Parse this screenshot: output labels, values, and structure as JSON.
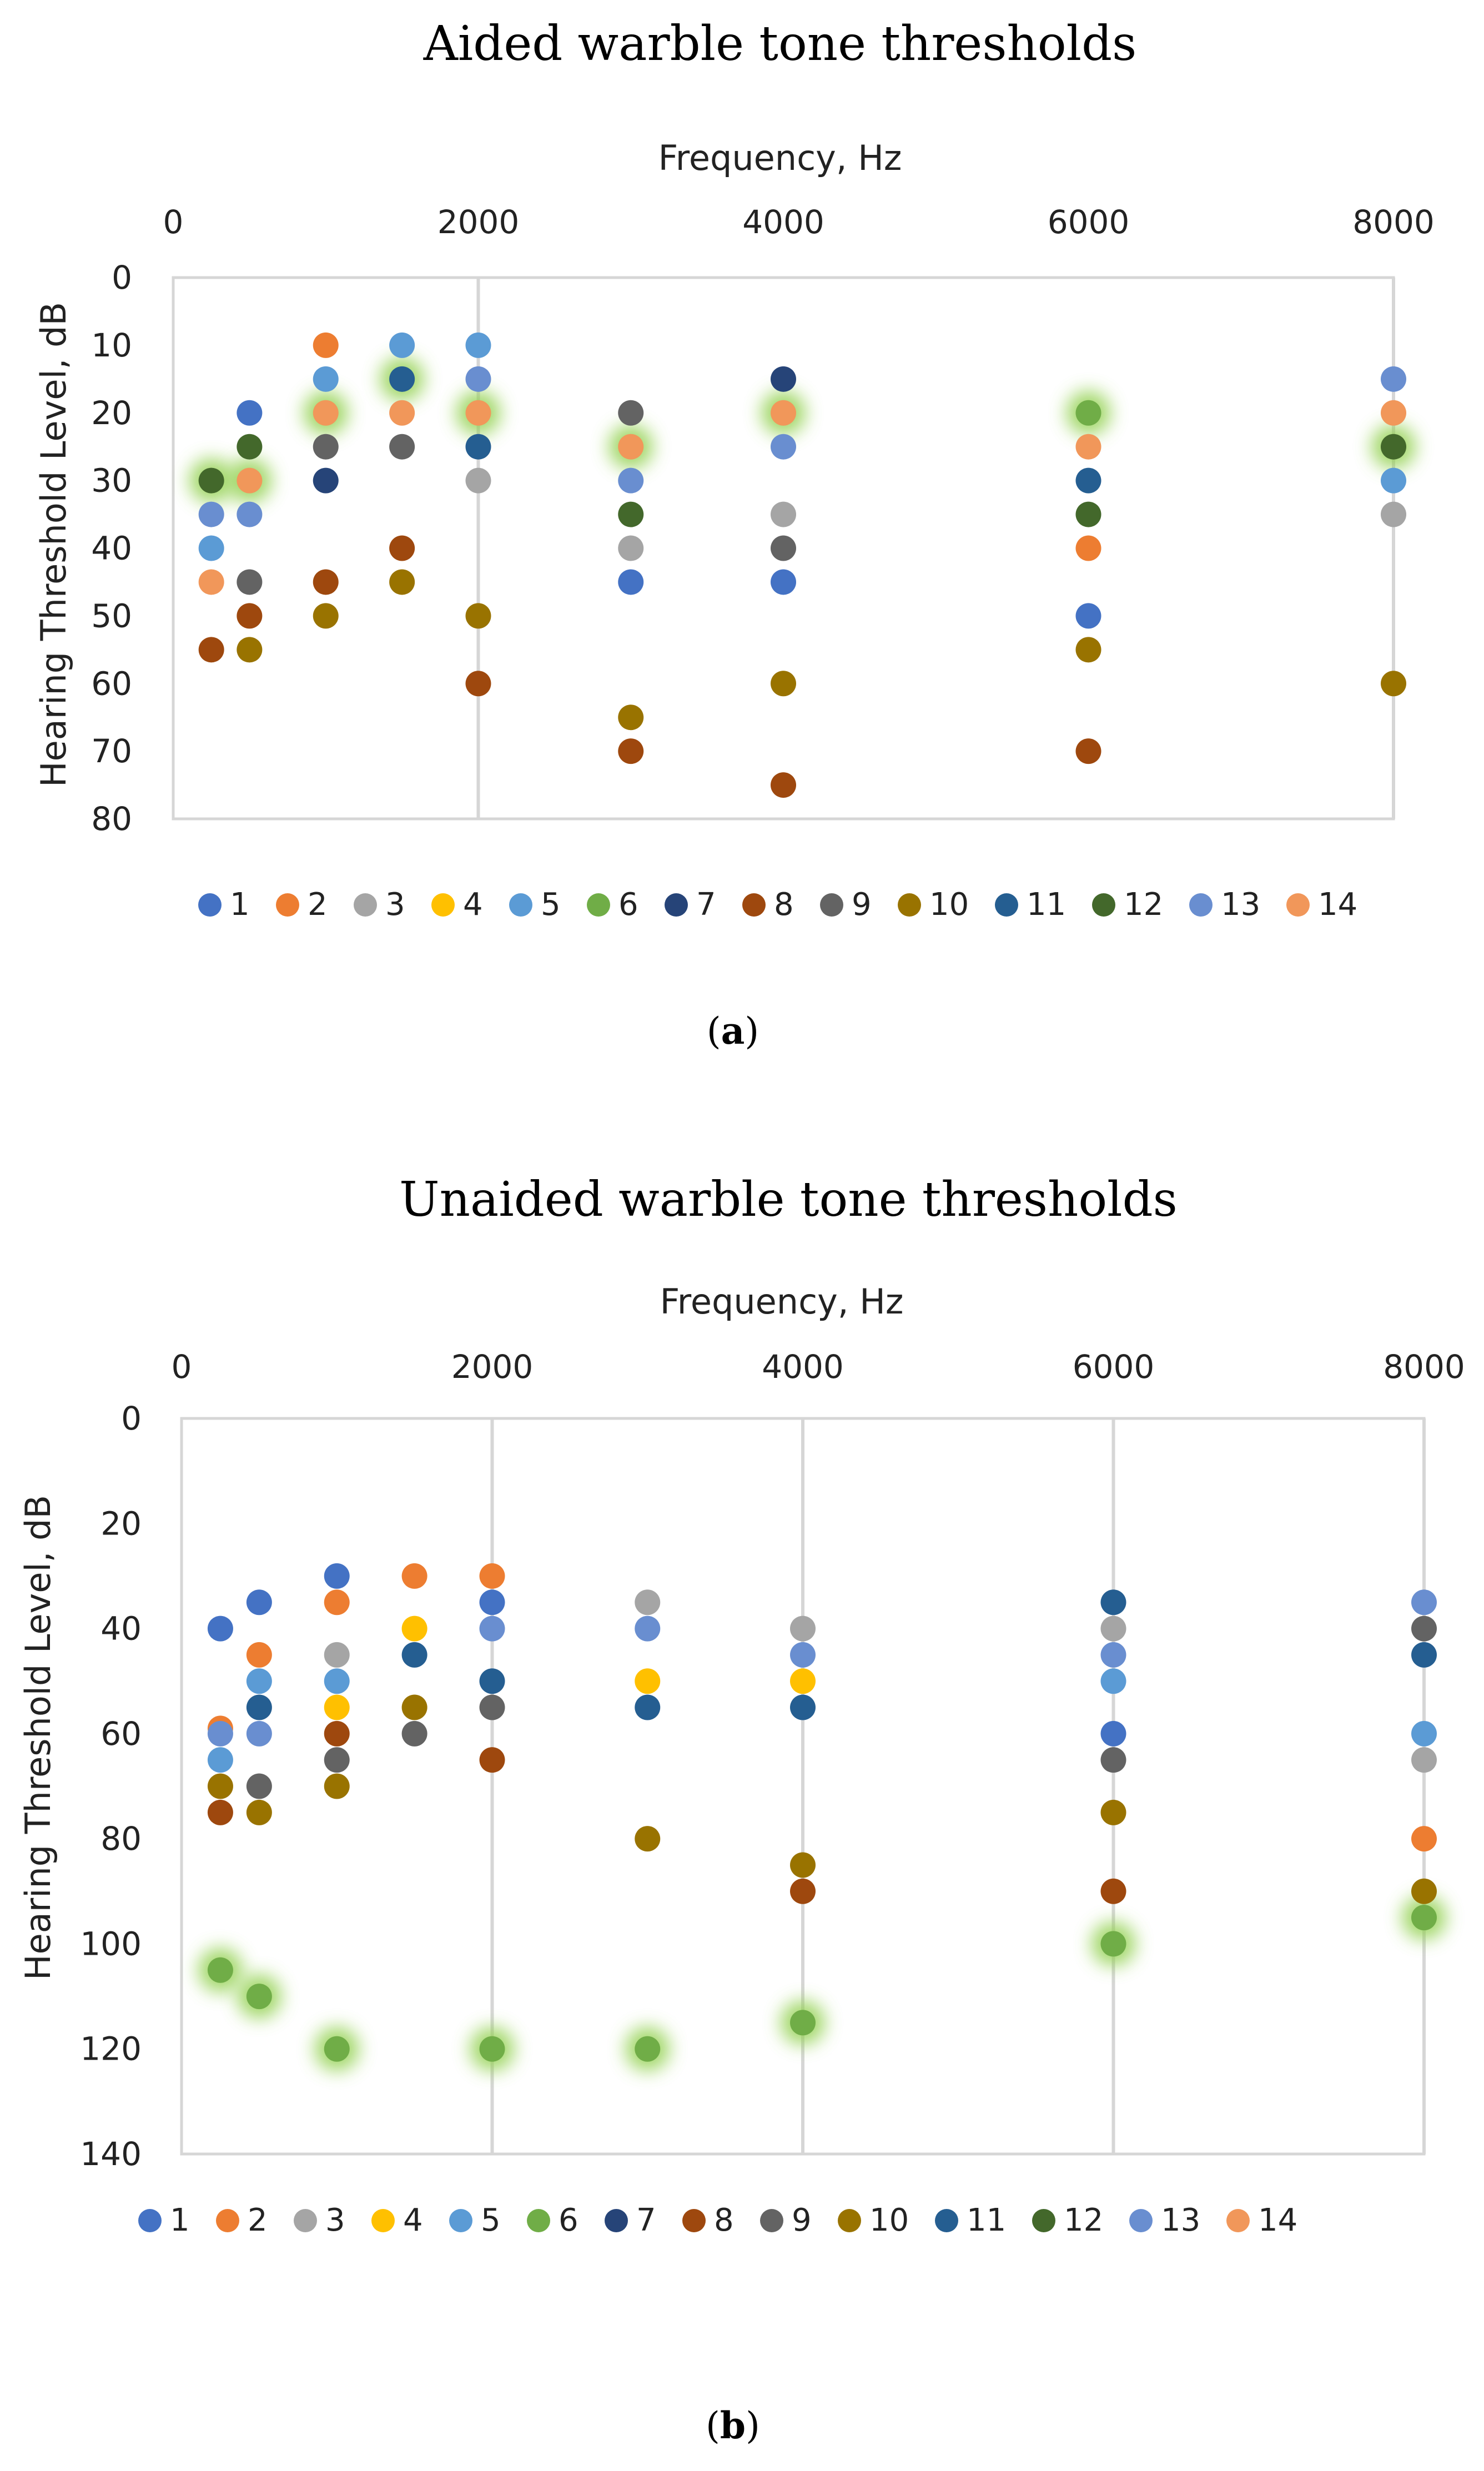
{
  "series_colors": {
    "1": "#4472C4",
    "2": "#ED7D31",
    "3": "#A5A5A5",
    "4": "#FFC000",
    "5": "#5B9BD5",
    "6": "#70AD47",
    "7": "#264478",
    "8": "#9E480E",
    "9": "#636363",
    "10": "#997300",
    "11": "#255E91",
    "12": "#43682B",
    "13": "#698ED0",
    "14": "#F1975A"
  },
  "glow_color": "#92D050",
  "legend": [
    "1",
    "2",
    "3",
    "4",
    "5",
    "6",
    "7",
    "8",
    "9",
    "10",
    "11",
    "12",
    "13",
    "14"
  ],
  "chart_data": [
    {
      "type": "scatter",
      "title": "Aided warble tone thresholds",
      "caption": "a",
      "xlabel": "Frequency, Hz",
      "ylabel": "Hearing Threshold Level, dB",
      "xlim": [
        0,
        8000
      ],
      "ylim": [
        0,
        80
      ],
      "y_reversed": true,
      "x_axis_position": "top",
      "xticks": [
        0,
        2000,
        4000,
        6000,
        8000
      ],
      "yticks": [
        0,
        10,
        20,
        30,
        40,
        50,
        60,
        70,
        80
      ],
      "xtick_labels": [
        "0",
        "2000",
        "4000",
        "6000",
        "8000"
      ],
      "ytick_labels": [
        "0",
        "10",
        "20",
        "30",
        "40",
        "50",
        "60",
        "70",
        "80"
      ],
      "x_gridlines": [
        2000,
        8000
      ],
      "points": [
        {
          "s": "12",
          "x": 250,
          "y": 30,
          "hl": true
        },
        {
          "s": "13",
          "x": 250,
          "y": 35
        },
        {
          "s": "5",
          "x": 250,
          "y": 40
        },
        {
          "s": "14",
          "x": 250,
          "y": 45
        },
        {
          "s": "8",
          "x": 250,
          "y": 55
        },
        {
          "s": "1",
          "x": 500,
          "y": 20
        },
        {
          "s": "12",
          "x": 500,
          "y": 25
        },
        {
          "s": "14",
          "x": 500,
          "y": 30,
          "hl": true
        },
        {
          "s": "13",
          "x": 500,
          "y": 35
        },
        {
          "s": "9",
          "x": 500,
          "y": 45
        },
        {
          "s": "8",
          "x": 500,
          "y": 50
        },
        {
          "s": "10",
          "x": 500,
          "y": 55
        },
        {
          "s": "2",
          "x": 1000,
          "y": 10
        },
        {
          "s": "5",
          "x": 1000,
          "y": 15
        },
        {
          "s": "14",
          "x": 1000,
          "y": 20,
          "hl": true
        },
        {
          "s": "9",
          "x": 1000,
          "y": 25
        },
        {
          "s": "7",
          "x": 1000,
          "y": 30
        },
        {
          "s": "8",
          "x": 1000,
          "y": 45
        },
        {
          "s": "10",
          "x": 1000,
          "y": 50
        },
        {
          "s": "5",
          "x": 1500,
          "y": 10
        },
        {
          "s": "11",
          "x": 1500,
          "y": 15,
          "hl": true
        },
        {
          "s": "14",
          "x": 1500,
          "y": 20
        },
        {
          "s": "9",
          "x": 1500,
          "y": 25
        },
        {
          "s": "8",
          "x": 1500,
          "y": 40
        },
        {
          "s": "10",
          "x": 1500,
          "y": 45
        },
        {
          "s": "5",
          "x": 2000,
          "y": 10
        },
        {
          "s": "13",
          "x": 2000,
          "y": 15
        },
        {
          "s": "14",
          "x": 2000,
          "y": 20,
          "hl": true
        },
        {
          "s": "11",
          "x": 2000,
          "y": 25
        },
        {
          "s": "3",
          "x": 2000,
          "y": 30
        },
        {
          "s": "10",
          "x": 2000,
          "y": 50
        },
        {
          "s": "8",
          "x": 2000,
          "y": 60
        },
        {
          "s": "9",
          "x": 3000,
          "y": 20
        },
        {
          "s": "14",
          "x": 3000,
          "y": 25,
          "hl": true
        },
        {
          "s": "13",
          "x": 3000,
          "y": 30
        },
        {
          "s": "12",
          "x": 3000,
          "y": 35
        },
        {
          "s": "3",
          "x": 3000,
          "y": 40
        },
        {
          "s": "1",
          "x": 3000,
          "y": 45
        },
        {
          "s": "10",
          "x": 3000,
          "y": 65
        },
        {
          "s": "8",
          "x": 3000,
          "y": 70
        },
        {
          "s": "7",
          "x": 4000,
          "y": 15
        },
        {
          "s": "14",
          "x": 4000,
          "y": 20,
          "hl": true
        },
        {
          "s": "13",
          "x": 4000,
          "y": 25
        },
        {
          "s": "3",
          "x": 4000,
          "y": 35
        },
        {
          "s": "9",
          "x": 4000,
          "y": 40
        },
        {
          "s": "1",
          "x": 4000,
          "y": 45
        },
        {
          "s": "10",
          "x": 4000,
          "y": 60
        },
        {
          "s": "8",
          "x": 4000,
          "y": 75
        },
        {
          "s": "6",
          "x": 6000,
          "y": 20,
          "hl": true
        },
        {
          "s": "14",
          "x": 6000,
          "y": 25
        },
        {
          "s": "11",
          "x": 6000,
          "y": 30
        },
        {
          "s": "12",
          "x": 6000,
          "y": 35
        },
        {
          "s": "2",
          "x": 6000,
          "y": 40
        },
        {
          "s": "1",
          "x": 6000,
          "y": 50
        },
        {
          "s": "10",
          "x": 6000,
          "y": 55
        },
        {
          "s": "8",
          "x": 6000,
          "y": 70
        },
        {
          "s": "13",
          "x": 8000,
          "y": 15
        },
        {
          "s": "14",
          "x": 8000,
          "y": 20
        },
        {
          "s": "12",
          "x": 8000,
          "y": 25,
          "hl": true
        },
        {
          "s": "5",
          "x": 8000,
          "y": 30
        },
        {
          "s": "3",
          "x": 8000,
          "y": 35
        },
        {
          "s": "10",
          "x": 8000,
          "y": 60
        }
      ]
    },
    {
      "type": "scatter",
      "title": "Unaided warble tone thresholds",
      "caption": "b",
      "xlabel": "Frequency, Hz",
      "ylabel": "Hearing Threshold Level, dB",
      "xlim": [
        0,
        8000
      ],
      "ylim": [
        0,
        140
      ],
      "y_reversed": true,
      "x_axis_position": "top",
      "xticks": [
        0,
        2000,
        4000,
        6000,
        8000
      ],
      "yticks": [
        0,
        20,
        40,
        60,
        80,
        100,
        120,
        140
      ],
      "xtick_labels": [
        "0",
        "2000",
        "4000",
        "6000",
        "8000"
      ],
      "ytick_labels": [
        "0",
        "20",
        "40",
        "60",
        "80",
        "100",
        "120",
        "140"
      ],
      "x_gridlines": [
        2000,
        4000,
        6000,
        8000
      ],
      "points": [
        {
          "s": "1",
          "x": 250,
          "y": 40
        },
        {
          "s": "2",
          "x": 250,
          "y": 59
        },
        {
          "s": "13",
          "x": 250,
          "y": 60
        },
        {
          "s": "5",
          "x": 250,
          "y": 65
        },
        {
          "s": "10",
          "x": 250,
          "y": 70
        },
        {
          "s": "8",
          "x": 250,
          "y": 75
        },
        {
          "s": "6",
          "x": 250,
          "y": 105,
          "hl": true
        },
        {
          "s": "1",
          "x": 500,
          "y": 35
        },
        {
          "s": "2",
          "x": 500,
          "y": 45
        },
        {
          "s": "5",
          "x": 500,
          "y": 50
        },
        {
          "s": "11",
          "x": 500,
          "y": 55
        },
        {
          "s": "13",
          "x": 500,
          "y": 60
        },
        {
          "s": "9",
          "x": 500,
          "y": 70
        },
        {
          "s": "10",
          "x": 500,
          "y": 75
        },
        {
          "s": "6",
          "x": 500,
          "y": 110,
          "hl": true
        },
        {
          "s": "1",
          "x": 1000,
          "y": 30
        },
        {
          "s": "2",
          "x": 1000,
          "y": 35
        },
        {
          "s": "3",
          "x": 1000,
          "y": 45
        },
        {
          "s": "5",
          "x": 1000,
          "y": 50
        },
        {
          "s": "4",
          "x": 1000,
          "y": 55
        },
        {
          "s": "8",
          "x": 1000,
          "y": 60
        },
        {
          "s": "9",
          "x": 1000,
          "y": 65
        },
        {
          "s": "10",
          "x": 1000,
          "y": 70
        },
        {
          "s": "6",
          "x": 1000,
          "y": 120,
          "hl": true
        },
        {
          "s": "2",
          "x": 1500,
          "y": 30
        },
        {
          "s": "4",
          "x": 1500,
          "y": 40
        },
        {
          "s": "11",
          "x": 1500,
          "y": 45
        },
        {
          "s": "10",
          "x": 1500,
          "y": 55
        },
        {
          "s": "9",
          "x": 1500,
          "y": 60
        },
        {
          "s": "2",
          "x": 2000,
          "y": 30
        },
        {
          "s": "1",
          "x": 2000,
          "y": 35
        },
        {
          "s": "13",
          "x": 2000,
          "y": 40
        },
        {
          "s": "11",
          "x": 2000,
          "y": 50
        },
        {
          "s": "9",
          "x": 2000,
          "y": 55
        },
        {
          "s": "8",
          "x": 2000,
          "y": 65
        },
        {
          "s": "6",
          "x": 2000,
          "y": 120,
          "hl": true
        },
        {
          "s": "3",
          "x": 3000,
          "y": 35
        },
        {
          "s": "13",
          "x": 3000,
          "y": 40
        },
        {
          "s": "4",
          "x": 3000,
          "y": 50
        },
        {
          "s": "11",
          "x": 3000,
          "y": 55
        },
        {
          "s": "10",
          "x": 3000,
          "y": 80
        },
        {
          "s": "6",
          "x": 3000,
          "y": 120,
          "hl": true
        },
        {
          "s": "3",
          "x": 4000,
          "y": 40
        },
        {
          "s": "13",
          "x": 4000,
          "y": 45
        },
        {
          "s": "4",
          "x": 4000,
          "y": 50
        },
        {
          "s": "11",
          "x": 4000,
          "y": 55
        },
        {
          "s": "10",
          "x": 4000,
          "y": 85
        },
        {
          "s": "8",
          "x": 4000,
          "y": 90
        },
        {
          "s": "6",
          "x": 4000,
          "y": 115,
          "hl": true
        },
        {
          "s": "11",
          "x": 6000,
          "y": 35
        },
        {
          "s": "3",
          "x": 6000,
          "y": 40
        },
        {
          "s": "13",
          "x": 6000,
          "y": 45
        },
        {
          "s": "5",
          "x": 6000,
          "y": 50
        },
        {
          "s": "1",
          "x": 6000,
          "y": 60
        },
        {
          "s": "9",
          "x": 6000,
          "y": 65
        },
        {
          "s": "10",
          "x": 6000,
          "y": 75
        },
        {
          "s": "8",
          "x": 6000,
          "y": 90
        },
        {
          "s": "6",
          "x": 6000,
          "y": 100,
          "hl": true
        },
        {
          "s": "13",
          "x": 8000,
          "y": 35
        },
        {
          "s": "9",
          "x": 8000,
          "y": 40
        },
        {
          "s": "11",
          "x": 8000,
          "y": 45
        },
        {
          "s": "5",
          "x": 8000,
          "y": 60
        },
        {
          "s": "3",
          "x": 8000,
          "y": 65
        },
        {
          "s": "2",
          "x": 8000,
          "y": 80
        },
        {
          "s": "10",
          "x": 8000,
          "y": 90
        },
        {
          "s": "6",
          "x": 8000,
          "y": 95,
          "hl": true
        }
      ]
    }
  ]
}
